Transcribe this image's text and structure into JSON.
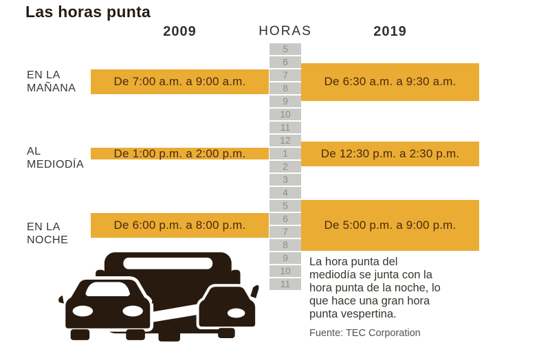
{
  "chart_data": {
    "type": "bar",
    "subtype": "time-range bars (gantt-style) on a vertical hour axis, two mirrored series",
    "title": "Las horas punta",
    "axis": {
      "label": "HORAS",
      "tick_labels": [
        "5",
        "6",
        "7",
        "8",
        "9",
        "10",
        "11",
        "12",
        "1",
        "2",
        "3",
        "4",
        "5",
        "6",
        "7",
        "8",
        "9",
        "10",
        "11"
      ],
      "range_24h": [
        5,
        24
      ],
      "orientation": "vertical",
      "position": "center"
    },
    "categories": [
      "EN LA\nMAÑANA",
      "AL\nMEDIODÍA",
      "EN LA\nNOCHE"
    ],
    "series": [
      {
        "name": "2009",
        "side": "left",
        "ranges_24h": [
          [
            7,
            9
          ],
          [
            13,
            14
          ],
          [
            18,
            20
          ]
        ],
        "labels": [
          "De 7:00 a.m. a 9:00 a.m.",
          "De 1:00 p.m. a 2:00 p.m.",
          "De 6:00 p.m. a 8:00 p.m."
        ]
      },
      {
        "name": "2019",
        "side": "right",
        "ranges_24h": [
          [
            6.5,
            9.5
          ],
          [
            12.5,
            14.5
          ],
          [
            17,
            21
          ]
        ],
        "labels": [
          "De 6:30 a.m. a 9:30 a.m.",
          "De 12:30 p.m. a 2:30 p.m.",
          "De 5:00 p.m. a 9:00 p.m."
        ]
      }
    ],
    "annotation_lines": [
      "La hora punta del",
      "mediodía se junta con la",
      "hora punta de la noche, lo",
      "que hace una gran hora",
      "punta vespertina."
    ],
    "source": "Fuente: TEC Corporation",
    "legend_position": "column headers above each series",
    "grid": false
  },
  "icons": {
    "traffic_illustration": "bus-and-cars-traffic-icon"
  },
  "colors": {
    "bg": "#ffffff",
    "bar": "#eaac33",
    "bar_text": "#4a2a10",
    "cell_bg": "#c9c9c6",
    "cell_text": "#8d8d8b",
    "title_text": "#241b11",
    "header_text": "#35302b",
    "label_text": "#3b352f",
    "note_text": "#3a342e",
    "source_text": "#56504a",
    "vehicle": "#281a0e"
  }
}
